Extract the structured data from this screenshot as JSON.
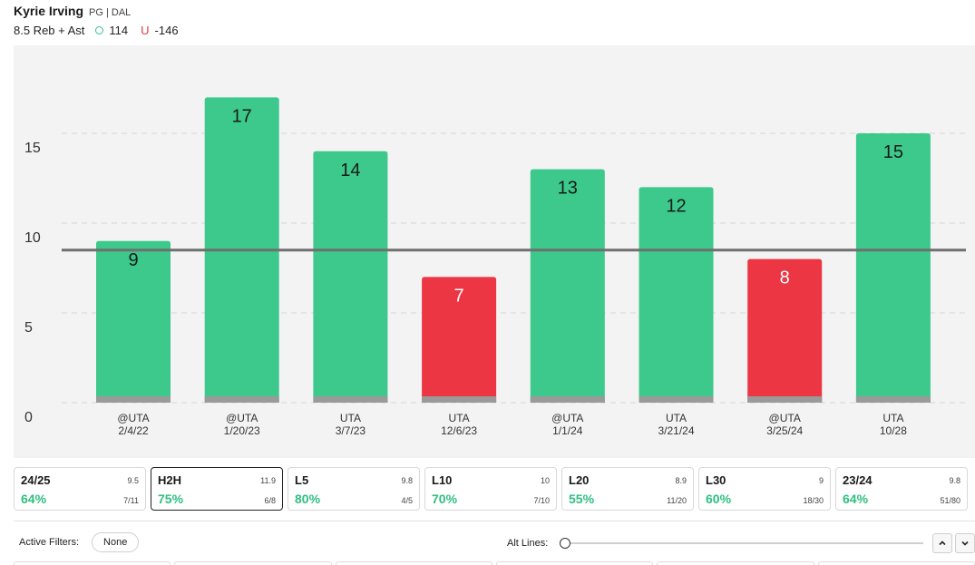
{
  "header": {
    "player_name": "Kyrie Irving",
    "player_meta": "PG | DAL",
    "prop_label": "8.5 Reb + Ast",
    "over_odds": "114",
    "under_letter": "U",
    "under_odds": "-146"
  },
  "colors": {
    "over": "#3cc98b",
    "under": "#ec3644",
    "line": "#6f6f6f",
    "base": "#9a9a9a"
  },
  "chart_data": {
    "type": "bar",
    "categories": [
      "@UTA 2/4/22",
      "@UTA 1/20/23",
      "UTA 3/7/23",
      "UTA 12/6/23",
      "@UTA 1/1/24",
      "UTA 3/21/24",
      "@UTA 3/25/24",
      "UTA 10/28"
    ],
    "x_top": [
      "@UTA",
      "@UTA",
      "UTA",
      "UTA",
      "@UTA",
      "UTA",
      "@UTA",
      "UTA"
    ],
    "x_bottom": [
      "2/4/22",
      "1/20/23",
      "3/7/23",
      "12/6/23",
      "1/1/24",
      "3/21/24",
      "3/25/24",
      "10/28"
    ],
    "values": [
      9,
      17,
      14,
      7,
      13,
      12,
      8,
      15
    ],
    "result": [
      "over",
      "over",
      "over",
      "under",
      "over",
      "over",
      "under",
      "over"
    ],
    "line": 8.5,
    "yticks": [
      0,
      5,
      10,
      15
    ],
    "ylim": [
      0,
      20
    ],
    "grid": true
  },
  "splits": [
    {
      "name": "24/25",
      "avg": "9.5",
      "pct": "64%",
      "count": "7/11",
      "active": false
    },
    {
      "name": "H2H",
      "avg": "11.9",
      "pct": "75%",
      "count": "6/8",
      "active": true
    },
    {
      "name": "L5",
      "avg": "9.8",
      "pct": "80%",
      "count": "4/5",
      "active": false
    },
    {
      "name": "L10",
      "avg": "10",
      "pct": "70%",
      "count": "7/10",
      "active": false
    },
    {
      "name": "L20",
      "avg": "8.9",
      "pct": "55%",
      "count": "11/20",
      "active": false
    },
    {
      "name": "L30",
      "avg": "9",
      "pct": "60%",
      "count": "18/30",
      "active": false
    },
    {
      "name": "23/24",
      "avg": "9.8",
      "pct": "64%",
      "count": "51/80",
      "active": false
    }
  ],
  "filters": {
    "active_label": "Active Filters:",
    "active_value": "None",
    "alt_lines_label": "Alt Lines:"
  }
}
